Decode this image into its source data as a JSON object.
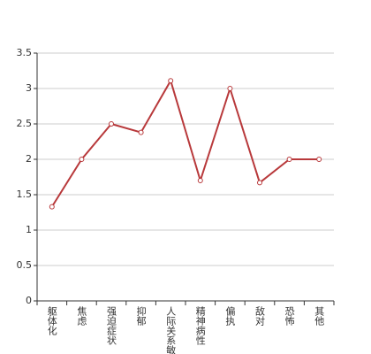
{
  "chart_data": {
    "type": "line",
    "categories": [
      "躯体化",
      "焦虑",
      "强迫症状",
      "抑郁",
      "人际关系敏感",
      "精神病性",
      "偏执",
      "敌对",
      "恐怖",
      "其他"
    ],
    "values": [
      1.33,
      2.0,
      2.5,
      2.38,
      3.11,
      1.7,
      3.0,
      1.67,
      2.0,
      2.0
    ],
    "color": "#b8393b",
    "ylim": [
      0,
      3.5
    ],
    "yticks": [
      0,
      0.5,
      1,
      1.5,
      2,
      2.5,
      3,
      3.5
    ],
    "grid": true
  }
}
